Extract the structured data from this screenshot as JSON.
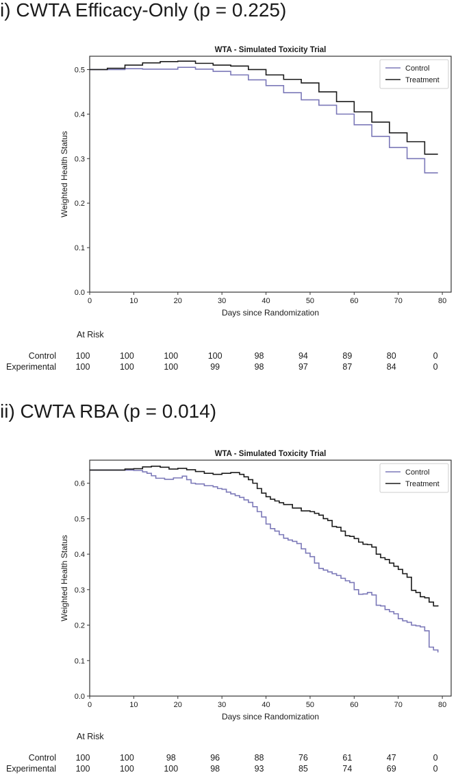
{
  "chart_data": [
    {
      "type": "line",
      "panel_title": "i) CWTA Efficacy-Only (p = 0.225)",
      "title": "WTA - Simulated Toxicity Trial",
      "xlabel": "Days since Randomization",
      "ylabel": "Weighted Health Status",
      "xlim": [
        0,
        82
      ],
      "ylim": [
        0,
        0.53
      ],
      "xticks": [
        0,
        10,
        20,
        30,
        40,
        50,
        60,
        70,
        80
      ],
      "yticks": [
        0.0,
        0.1,
        0.2,
        0.3,
        0.4,
        0.5
      ],
      "ytick_labels": [
        "0.0",
        "0.1",
        "0.2",
        "0.3",
        "0.4",
        "0.5"
      ],
      "legend": "top-right",
      "series": [
        {
          "name": "Control",
          "color": "#7b78b8",
          "x": [
            0,
            8,
            12,
            20,
            24,
            28,
            32,
            36,
            40,
            44,
            48,
            52,
            56,
            60,
            64,
            68,
            72,
            76,
            79
          ],
          "y": [
            0.5,
            0.502,
            0.501,
            0.505,
            0.501,
            0.496,
            0.488,
            0.477,
            0.464,
            0.448,
            0.432,
            0.42,
            0.4,
            0.376,
            0.35,
            0.325,
            0.3,
            0.268,
            0.268
          ]
        },
        {
          "name": "Treatment",
          "color": "#1a1a1a",
          "x": [
            0,
            4,
            8,
            12,
            16,
            20,
            24,
            28,
            32,
            36,
            40,
            44,
            48,
            52,
            56,
            60,
            64,
            68,
            72,
            76,
            79
          ],
          "y": [
            0.5,
            0.503,
            0.51,
            0.515,
            0.518,
            0.519,
            0.514,
            0.51,
            0.508,
            0.5,
            0.488,
            0.478,
            0.47,
            0.45,
            0.428,
            0.405,
            0.382,
            0.358,
            0.338,
            0.31,
            0.31
          ]
        }
      ],
      "at_risk": {
        "header": "At Risk",
        "rows": [
          {
            "label": "Control",
            "values": [
              "100",
              "100",
              "100",
              "100",
              "98",
              "94",
              "89",
              "80",
              "0"
            ]
          },
          {
            "label": "Experimental",
            "values": [
              "100",
              "100",
              "100",
              "99",
              "98",
              "97",
              "87",
              "84",
              "0"
            ]
          }
        ]
      }
    },
    {
      "type": "line",
      "panel_title": "ii) CWTA RBA (p = 0.014)",
      "title": "WTA - Simulated Toxicity Trial",
      "xlabel": "Days since Randomization",
      "ylabel": "Weighted Health Status",
      "xlim": [
        0,
        82
      ],
      "ylim": [
        0,
        0.665
      ],
      "xticks": [
        0,
        10,
        20,
        30,
        40,
        50,
        60,
        70,
        80
      ],
      "yticks": [
        0.0,
        0.1,
        0.2,
        0.3,
        0.4,
        0.5,
        0.6
      ],
      "ytick_labels": [
        "0.0",
        "0.1",
        "0.2",
        "0.3",
        "0.4",
        "0.5",
        "0.6"
      ],
      "legend": "top-right",
      "series": [
        {
          "name": "Control",
          "color": "#7b78b8",
          "x": [
            0,
            6,
            10,
            12,
            13,
            14,
            15,
            17,
            19,
            21,
            22,
            23,
            24,
            26,
            28,
            29,
            30,
            31,
            32,
            33,
            34,
            35,
            36,
            37,
            38,
            39,
            40,
            41,
            42,
            43,
            44,
            45,
            46,
            47,
            48,
            49,
            50,
            51,
            52,
            53,
            54,
            55,
            56,
            57,
            58,
            59,
            60,
            61,
            62,
            63,
            64,
            65,
            66,
            67,
            68,
            69,
            70,
            71,
            72,
            73,
            74,
            75,
            76,
            77,
            78,
            79
          ],
          "y": [
            0.637,
            0.637,
            0.636,
            0.632,
            0.628,
            0.621,
            0.614,
            0.611,
            0.615,
            0.62,
            0.61,
            0.6,
            0.598,
            0.593,
            0.59,
            0.585,
            0.583,
            0.575,
            0.57,
            0.565,
            0.56,
            0.553,
            0.546,
            0.534,
            0.52,
            0.505,
            0.485,
            0.472,
            0.465,
            0.455,
            0.445,
            0.44,
            0.436,
            0.43,
            0.415,
            0.403,
            0.393,
            0.375,
            0.36,
            0.355,
            0.35,
            0.345,
            0.34,
            0.332,
            0.325,
            0.32,
            0.3,
            0.287,
            0.288,
            0.292,
            0.285,
            0.256,
            0.254,
            0.244,
            0.238,
            0.232,
            0.218,
            0.212,
            0.208,
            0.2,
            0.198,
            0.195,
            0.184,
            0.138,
            0.13,
            0.123
          ]
        },
        {
          "name": "Treatment",
          "color": "#1a1a1a",
          "x": [
            0,
            6,
            8,
            10,
            12,
            14,
            16,
            18,
            20,
            22,
            24,
            26,
            28,
            30,
            32,
            34,
            35,
            36,
            37,
            38,
            39,
            40,
            41,
            42,
            43,
            44,
            46,
            48,
            50,
            51,
            52,
            53,
            54,
            55,
            56,
            57,
            58,
            59,
            60,
            61,
            62,
            63,
            64,
            65,
            66,
            67,
            68,
            69,
            70,
            71,
            72,
            73,
            74,
            75,
            76,
            77,
            78,
            79
          ],
          "y": [
            0.637,
            0.637,
            0.64,
            0.641,
            0.646,
            0.648,
            0.645,
            0.64,
            0.642,
            0.638,
            0.633,
            0.628,
            0.625,
            0.628,
            0.63,
            0.625,
            0.618,
            0.61,
            0.6,
            0.585,
            0.572,
            0.562,
            0.555,
            0.55,
            0.545,
            0.54,
            0.53,
            0.522,
            0.52,
            0.515,
            0.51,
            0.5,
            0.495,
            0.478,
            0.476,
            0.465,
            0.452,
            0.45,
            0.444,
            0.434,
            0.428,
            0.427,
            0.42,
            0.4,
            0.39,
            0.385,
            0.375,
            0.366,
            0.357,
            0.345,
            0.335,
            0.298,
            0.292,
            0.28,
            0.277,
            0.265,
            0.254,
            0.256
          ]
        }
      ],
      "at_risk": {
        "header": "At Risk",
        "rows": [
          {
            "label": "Control",
            "values": [
              "100",
              "100",
              "98",
              "96",
              "88",
              "76",
              "61",
              "47",
              "0"
            ]
          },
          {
            "label": "Experimental",
            "values": [
              "100",
              "100",
              "100",
              "98",
              "93",
              "85",
              "74",
              "69",
              "0"
            ]
          }
        ]
      }
    }
  ]
}
